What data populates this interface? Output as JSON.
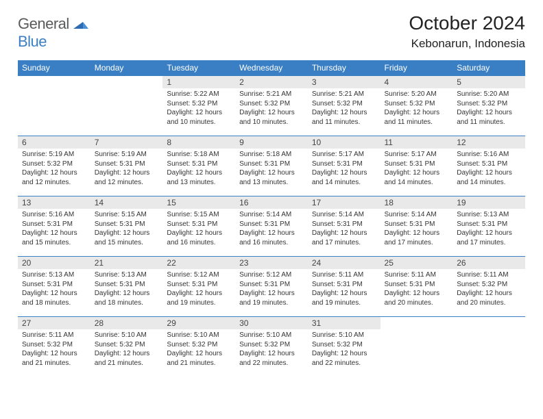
{
  "logo": {
    "text1": "General",
    "text2": "Blue"
  },
  "header": {
    "title": "October 2024",
    "location": "Kebonarun, Indonesia"
  },
  "colors": {
    "accent": "#3a7fc4",
    "daybar": "#e9e9e9",
    "bg": "#ffffff"
  },
  "weekdays": [
    "Sunday",
    "Monday",
    "Tuesday",
    "Wednesday",
    "Thursday",
    "Friday",
    "Saturday"
  ],
  "weeks": [
    [
      {
        "n": "",
        "sr": "",
        "ss": "",
        "dl": ""
      },
      {
        "n": "",
        "sr": "",
        "ss": "",
        "dl": ""
      },
      {
        "n": "1",
        "sr": "Sunrise: 5:22 AM",
        "ss": "Sunset: 5:32 PM",
        "dl": "Daylight: 12 hours and 10 minutes."
      },
      {
        "n": "2",
        "sr": "Sunrise: 5:21 AM",
        "ss": "Sunset: 5:32 PM",
        "dl": "Daylight: 12 hours and 10 minutes."
      },
      {
        "n": "3",
        "sr": "Sunrise: 5:21 AM",
        "ss": "Sunset: 5:32 PM",
        "dl": "Daylight: 12 hours and 11 minutes."
      },
      {
        "n": "4",
        "sr": "Sunrise: 5:20 AM",
        "ss": "Sunset: 5:32 PM",
        "dl": "Daylight: 12 hours and 11 minutes."
      },
      {
        "n": "5",
        "sr": "Sunrise: 5:20 AM",
        "ss": "Sunset: 5:32 PM",
        "dl": "Daylight: 12 hours and 11 minutes."
      }
    ],
    [
      {
        "n": "6",
        "sr": "Sunrise: 5:19 AM",
        "ss": "Sunset: 5:32 PM",
        "dl": "Daylight: 12 hours and 12 minutes."
      },
      {
        "n": "7",
        "sr": "Sunrise: 5:19 AM",
        "ss": "Sunset: 5:31 PM",
        "dl": "Daylight: 12 hours and 12 minutes."
      },
      {
        "n": "8",
        "sr": "Sunrise: 5:18 AM",
        "ss": "Sunset: 5:31 PM",
        "dl": "Daylight: 12 hours and 13 minutes."
      },
      {
        "n": "9",
        "sr": "Sunrise: 5:18 AM",
        "ss": "Sunset: 5:31 PM",
        "dl": "Daylight: 12 hours and 13 minutes."
      },
      {
        "n": "10",
        "sr": "Sunrise: 5:17 AM",
        "ss": "Sunset: 5:31 PM",
        "dl": "Daylight: 12 hours and 14 minutes."
      },
      {
        "n": "11",
        "sr": "Sunrise: 5:17 AM",
        "ss": "Sunset: 5:31 PM",
        "dl": "Daylight: 12 hours and 14 minutes."
      },
      {
        "n": "12",
        "sr": "Sunrise: 5:16 AM",
        "ss": "Sunset: 5:31 PM",
        "dl": "Daylight: 12 hours and 14 minutes."
      }
    ],
    [
      {
        "n": "13",
        "sr": "Sunrise: 5:16 AM",
        "ss": "Sunset: 5:31 PM",
        "dl": "Daylight: 12 hours and 15 minutes."
      },
      {
        "n": "14",
        "sr": "Sunrise: 5:15 AM",
        "ss": "Sunset: 5:31 PM",
        "dl": "Daylight: 12 hours and 15 minutes."
      },
      {
        "n": "15",
        "sr": "Sunrise: 5:15 AM",
        "ss": "Sunset: 5:31 PM",
        "dl": "Daylight: 12 hours and 16 minutes."
      },
      {
        "n": "16",
        "sr": "Sunrise: 5:14 AM",
        "ss": "Sunset: 5:31 PM",
        "dl": "Daylight: 12 hours and 16 minutes."
      },
      {
        "n": "17",
        "sr": "Sunrise: 5:14 AM",
        "ss": "Sunset: 5:31 PM",
        "dl": "Daylight: 12 hours and 17 minutes."
      },
      {
        "n": "18",
        "sr": "Sunrise: 5:14 AM",
        "ss": "Sunset: 5:31 PM",
        "dl": "Daylight: 12 hours and 17 minutes."
      },
      {
        "n": "19",
        "sr": "Sunrise: 5:13 AM",
        "ss": "Sunset: 5:31 PM",
        "dl": "Daylight: 12 hours and 17 minutes."
      }
    ],
    [
      {
        "n": "20",
        "sr": "Sunrise: 5:13 AM",
        "ss": "Sunset: 5:31 PM",
        "dl": "Daylight: 12 hours and 18 minutes."
      },
      {
        "n": "21",
        "sr": "Sunrise: 5:13 AM",
        "ss": "Sunset: 5:31 PM",
        "dl": "Daylight: 12 hours and 18 minutes."
      },
      {
        "n": "22",
        "sr": "Sunrise: 5:12 AM",
        "ss": "Sunset: 5:31 PM",
        "dl": "Daylight: 12 hours and 19 minutes."
      },
      {
        "n": "23",
        "sr": "Sunrise: 5:12 AM",
        "ss": "Sunset: 5:31 PM",
        "dl": "Daylight: 12 hours and 19 minutes."
      },
      {
        "n": "24",
        "sr": "Sunrise: 5:11 AM",
        "ss": "Sunset: 5:31 PM",
        "dl": "Daylight: 12 hours and 19 minutes."
      },
      {
        "n": "25",
        "sr": "Sunrise: 5:11 AM",
        "ss": "Sunset: 5:31 PM",
        "dl": "Daylight: 12 hours and 20 minutes."
      },
      {
        "n": "26",
        "sr": "Sunrise: 5:11 AM",
        "ss": "Sunset: 5:32 PM",
        "dl": "Daylight: 12 hours and 20 minutes."
      }
    ],
    [
      {
        "n": "27",
        "sr": "Sunrise: 5:11 AM",
        "ss": "Sunset: 5:32 PM",
        "dl": "Daylight: 12 hours and 21 minutes."
      },
      {
        "n": "28",
        "sr": "Sunrise: 5:10 AM",
        "ss": "Sunset: 5:32 PM",
        "dl": "Daylight: 12 hours and 21 minutes."
      },
      {
        "n": "29",
        "sr": "Sunrise: 5:10 AM",
        "ss": "Sunset: 5:32 PM",
        "dl": "Daylight: 12 hours and 21 minutes."
      },
      {
        "n": "30",
        "sr": "Sunrise: 5:10 AM",
        "ss": "Sunset: 5:32 PM",
        "dl": "Daylight: 12 hours and 22 minutes."
      },
      {
        "n": "31",
        "sr": "Sunrise: 5:10 AM",
        "ss": "Sunset: 5:32 PM",
        "dl": "Daylight: 12 hours and 22 minutes."
      },
      {
        "n": "",
        "sr": "",
        "ss": "",
        "dl": ""
      },
      {
        "n": "",
        "sr": "",
        "ss": "",
        "dl": ""
      }
    ]
  ]
}
